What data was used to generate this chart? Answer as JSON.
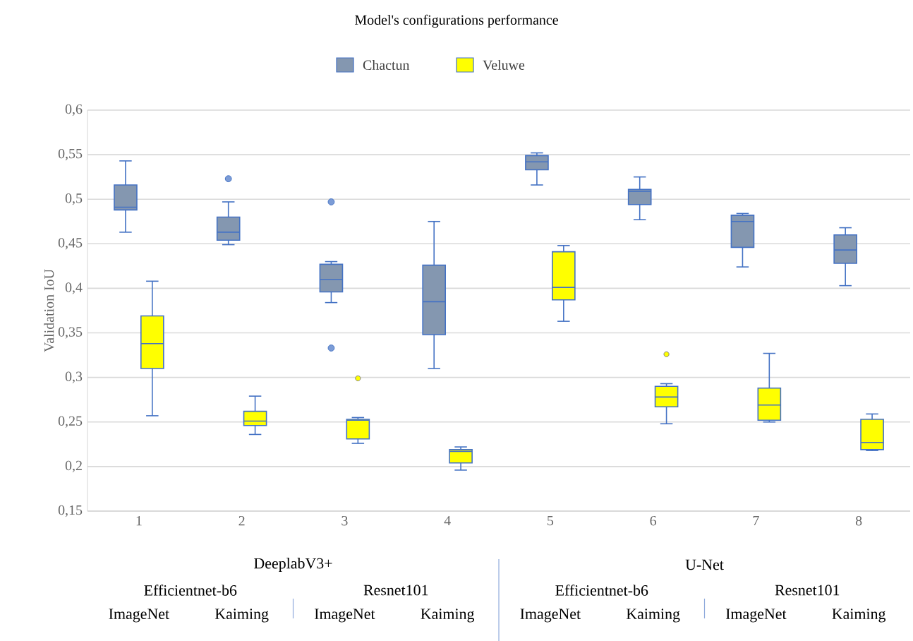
{
  "chart_data": {
    "type": "box",
    "title": "Model's configurations performance",
    "ylabel": "Validation IoU",
    "categories": [
      "1",
      "2",
      "3",
      "4",
      "5",
      "6",
      "7",
      "8"
    ],
    "ylim": [
      0.15,
      0.6
    ],
    "yticks": [
      {
        "value": 0.15,
        "label": "0,15"
      },
      {
        "value": 0.2,
        "label": "0,2"
      },
      {
        "value": 0.25,
        "label": "0,25"
      },
      {
        "value": 0.3,
        "label": "0,3"
      },
      {
        "value": 0.35,
        "label": "0,35"
      },
      {
        "value": 0.4,
        "label": "0,4"
      },
      {
        "value": 0.45,
        "label": "0,45"
      },
      {
        "value": 0.5,
        "label": "0,5"
      },
      {
        "value": 0.55,
        "label": "0,55"
      },
      {
        "value": 0.6,
        "label": "0,6"
      }
    ],
    "grid": "y",
    "legend": "top",
    "marker": "circle",
    "series": [
      {
        "name": "Chactun",
        "color": "#8497b0",
        "boxes": [
          {
            "low": 0.463,
            "q1": 0.488,
            "median": 0.491,
            "q3": 0.516,
            "high": 0.543
          },
          {
            "low": 0.449,
            "q1": 0.454,
            "median": 0.463,
            "q3": 0.48,
            "high": 0.497,
            "outliers": [
              0.523
            ]
          },
          {
            "low": 0.384,
            "q1": 0.396,
            "median": 0.41,
            "q3": 0.427,
            "high": 0.43,
            "outliers": [
              0.497,
              0.333
            ]
          },
          {
            "low": 0.31,
            "q1": 0.348,
            "median": 0.385,
            "q3": 0.426,
            "high": 0.475
          },
          {
            "low": 0.516,
            "q1": 0.533,
            "median": 0.542,
            "q3": 0.549,
            "high": 0.552
          },
          {
            "low": 0.477,
            "q1": 0.494,
            "median": 0.509,
            "q3": 0.511,
            "high": 0.525
          },
          {
            "low": 0.424,
            "q1": 0.446,
            "median": 0.475,
            "q3": 0.482,
            "high": 0.484
          },
          {
            "low": 0.403,
            "q1": 0.428,
            "median": 0.443,
            "q3": 0.46,
            "high": 0.468
          }
        ]
      },
      {
        "name": "Veluwe",
        "color": "#ffff00",
        "boxes": [
          {
            "low": 0.257,
            "q1": 0.31,
            "median": 0.338,
            "q3": 0.369,
            "high": 0.408
          },
          {
            "low": 0.236,
            "q1": 0.246,
            "median": 0.251,
            "q3": 0.262,
            "high": 0.279
          },
          {
            "low": 0.226,
            "q1": 0.231,
            "median": 0.252,
            "q3": 0.253,
            "high": 0.255,
            "outliers": [
              0.299
            ]
          },
          {
            "low": 0.196,
            "q1": 0.204,
            "median": 0.217,
            "q3": 0.219,
            "high": 0.222
          },
          {
            "low": 0.363,
            "q1": 0.387,
            "median": 0.401,
            "q3": 0.441,
            "high": 0.448
          },
          {
            "low": 0.248,
            "q1": 0.267,
            "median": 0.278,
            "q3": 0.29,
            "high": 0.293,
            "outliers": [
              0.326
            ]
          },
          {
            "low": 0.25,
            "q1": 0.252,
            "median": 0.269,
            "q3": 0.288,
            "high": 0.327
          },
          {
            "low": 0.218,
            "q1": 0.219,
            "median": 0.227,
            "q3": 0.253,
            "high": 0.259
          }
        ]
      }
    ],
    "annotations": [
      "DeeplabV3+",
      "U-Net",
      "Efficientnet-b6",
      "Resnet101",
      "Efficientnet-b6",
      "Resnet101",
      "ImageNet",
      "Kaiming",
      "ImageNet",
      "Kaiming",
      "ImageNet",
      "Kaiming",
      "ImageNet",
      "Kaiming"
    ]
  }
}
